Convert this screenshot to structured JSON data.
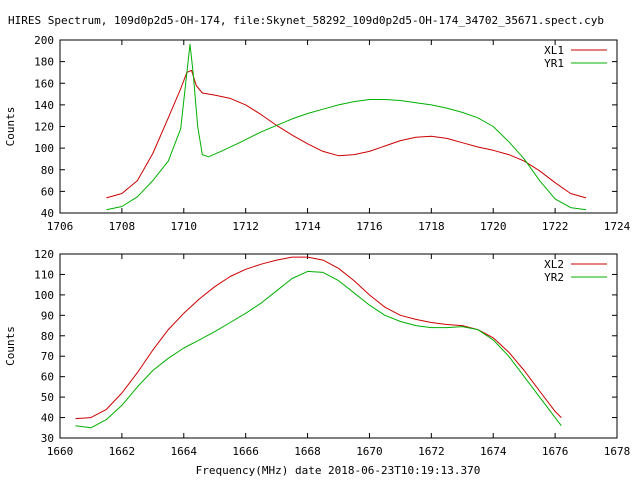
{
  "title": "HIRES Spectrum, 109d0p2d5-OH-174, file:Skynet_58292_109d0p2d5-OH-174_34702_35671.spect.cyb",
  "xlabel": "Frequency(MHz) date 2018-06-23T10:19:13.370",
  "chart_data": [
    {
      "type": "line",
      "ylabel": "Counts",
      "xlim": [
        1706,
        1724
      ],
      "ylim": [
        40,
        200
      ],
      "xticks": [
        1706,
        1708,
        1710,
        1712,
        1714,
        1716,
        1718,
        1720,
        1722,
        1724
      ],
      "yticks": [
        40,
        60,
        80,
        100,
        120,
        140,
        160,
        180,
        200
      ],
      "legend_position": "top-right",
      "series": [
        {
          "name": "XL1",
          "color": "#cc0000",
          "points": [
            [
              1707.5,
              54
            ],
            [
              1708.0,
              58
            ],
            [
              1708.5,
              70
            ],
            [
              1709.0,
              95
            ],
            [
              1709.5,
              128
            ],
            [
              1709.9,
              155
            ],
            [
              1710.1,
              170
            ],
            [
              1710.25,
              172
            ],
            [
              1710.4,
              158
            ],
            [
              1710.6,
              151
            ],
            [
              1711.0,
              149
            ],
            [
              1711.5,
              146
            ],
            [
              1712.0,
              140
            ],
            [
              1712.5,
              131
            ],
            [
              1713.0,
              121
            ],
            [
              1713.5,
              112
            ],
            [
              1714.0,
              104
            ],
            [
              1714.5,
              97
            ],
            [
              1715.0,
              93
            ],
            [
              1715.5,
              94
            ],
            [
              1716.0,
              97
            ],
            [
              1716.5,
              102
            ],
            [
              1717.0,
              107
            ],
            [
              1717.5,
              110
            ],
            [
              1718.0,
              111
            ],
            [
              1718.5,
              109
            ],
            [
              1719.0,
              105
            ],
            [
              1719.5,
              101
            ],
            [
              1720.0,
              98
            ],
            [
              1720.5,
              94
            ],
            [
              1721.0,
              88
            ],
            [
              1721.5,
              79
            ],
            [
              1722.0,
              68
            ],
            [
              1722.5,
              58
            ],
            [
              1723.0,
              54
            ]
          ]
        },
        {
          "name": "YR1",
          "color": "#00b000",
          "points": [
            [
              1707.5,
              43
            ],
            [
              1708.0,
              46
            ],
            [
              1708.5,
              55
            ],
            [
              1709.0,
              70
            ],
            [
              1709.5,
              88
            ],
            [
              1709.9,
              118
            ],
            [
              1710.1,
              170
            ],
            [
              1710.2,
              196
            ],
            [
              1710.3,
              170
            ],
            [
              1710.45,
              120
            ],
            [
              1710.6,
              94
            ],
            [
              1710.8,
              92
            ],
            [
              1711.2,
              97
            ],
            [
              1711.8,
              105
            ],
            [
              1712.5,
              115
            ],
            [
              1713.0,
              121
            ],
            [
              1713.5,
              127
            ],
            [
              1714.0,
              132
            ],
            [
              1714.5,
              136
            ],
            [
              1715.0,
              140
            ],
            [
              1715.5,
              143
            ],
            [
              1716.0,
              145
            ],
            [
              1716.5,
              145
            ],
            [
              1717.0,
              144
            ],
            [
              1717.5,
              142
            ],
            [
              1718.0,
              140
            ],
            [
              1718.5,
              137
            ],
            [
              1719.0,
              133
            ],
            [
              1719.5,
              128
            ],
            [
              1720.0,
              120
            ],
            [
              1720.5,
              106
            ],
            [
              1721.0,
              90
            ],
            [
              1721.5,
              70
            ],
            [
              1722.0,
              53
            ],
            [
              1722.5,
              45
            ],
            [
              1723.0,
              43
            ]
          ]
        }
      ]
    },
    {
      "type": "line",
      "ylabel": "Counts",
      "xlim": [
        1660,
        1678
      ],
      "ylim": [
        30,
        120
      ],
      "xticks": [
        1660,
        1662,
        1664,
        1666,
        1668,
        1670,
        1672,
        1674,
        1676,
        1678
      ],
      "yticks": [
        30,
        40,
        50,
        60,
        70,
        80,
        90,
        100,
        110,
        120
      ],
      "legend_position": "top-right",
      "series": [
        {
          "name": "XL2",
          "color": "#cc0000",
          "points": [
            [
              1660.5,
              39.5
            ],
            [
              1661.0,
              40
            ],
            [
              1661.5,
              44
            ],
            [
              1662.0,
              52
            ],
            [
              1662.5,
              62
            ],
            [
              1663.0,
              73
            ],
            [
              1663.5,
              83
            ],
            [
              1664.0,
              91
            ],
            [
              1664.5,
              98
            ],
            [
              1665.0,
              104
            ],
            [
              1665.5,
              109
            ],
            [
              1666.0,
              112.5
            ],
            [
              1666.5,
              115
            ],
            [
              1667.0,
              117
            ],
            [
              1667.5,
              118.5
            ],
            [
              1668.0,
              118.5
            ],
            [
              1668.5,
              117
            ],
            [
              1669.0,
              113
            ],
            [
              1669.5,
              107
            ],
            [
              1670.0,
              100
            ],
            [
              1670.5,
              94
            ],
            [
              1671.0,
              90
            ],
            [
              1671.5,
              88
            ],
            [
              1672.0,
              86.5
            ],
            [
              1672.5,
              85.5
            ],
            [
              1673.0,
              85
            ],
            [
              1673.5,
              83
            ],
            [
              1674.0,
              79
            ],
            [
              1674.5,
              72
            ],
            [
              1675.0,
              63
            ],
            [
              1675.5,
              53
            ],
            [
              1676.0,
              43
            ],
            [
              1676.2,
              40
            ]
          ]
        },
        {
          "name": "YR2",
          "color": "#00b000",
          "points": [
            [
              1660.5,
              36
            ],
            [
              1661.0,
              35
            ],
            [
              1661.5,
              39
            ],
            [
              1662.0,
              46
            ],
            [
              1662.5,
              55
            ],
            [
              1663.0,
              63
            ],
            [
              1663.5,
              69
            ],
            [
              1664.0,
              74
            ],
            [
              1664.5,
              78
            ],
            [
              1665.0,
              82
            ],
            [
              1665.5,
              86.5
            ],
            [
              1666.0,
              91
            ],
            [
              1666.5,
              96
            ],
            [
              1667.0,
              102
            ],
            [
              1667.5,
              108
            ],
            [
              1668.0,
              111.5
            ],
            [
              1668.5,
              111
            ],
            [
              1669.0,
              107
            ],
            [
              1669.5,
              101
            ],
            [
              1670.0,
              95
            ],
            [
              1670.5,
              90
            ],
            [
              1671.0,
              87
            ],
            [
              1671.5,
              85
            ],
            [
              1672.0,
              84
            ],
            [
              1672.5,
              84
            ],
            [
              1673.0,
              84.5
            ],
            [
              1673.5,
              83
            ],
            [
              1674.0,
              78
            ],
            [
              1674.5,
              70
            ],
            [
              1675.0,
              60
            ],
            [
              1675.5,
              50
            ],
            [
              1676.0,
              40
            ],
            [
              1676.2,
              36
            ]
          ]
        }
      ]
    }
  ]
}
